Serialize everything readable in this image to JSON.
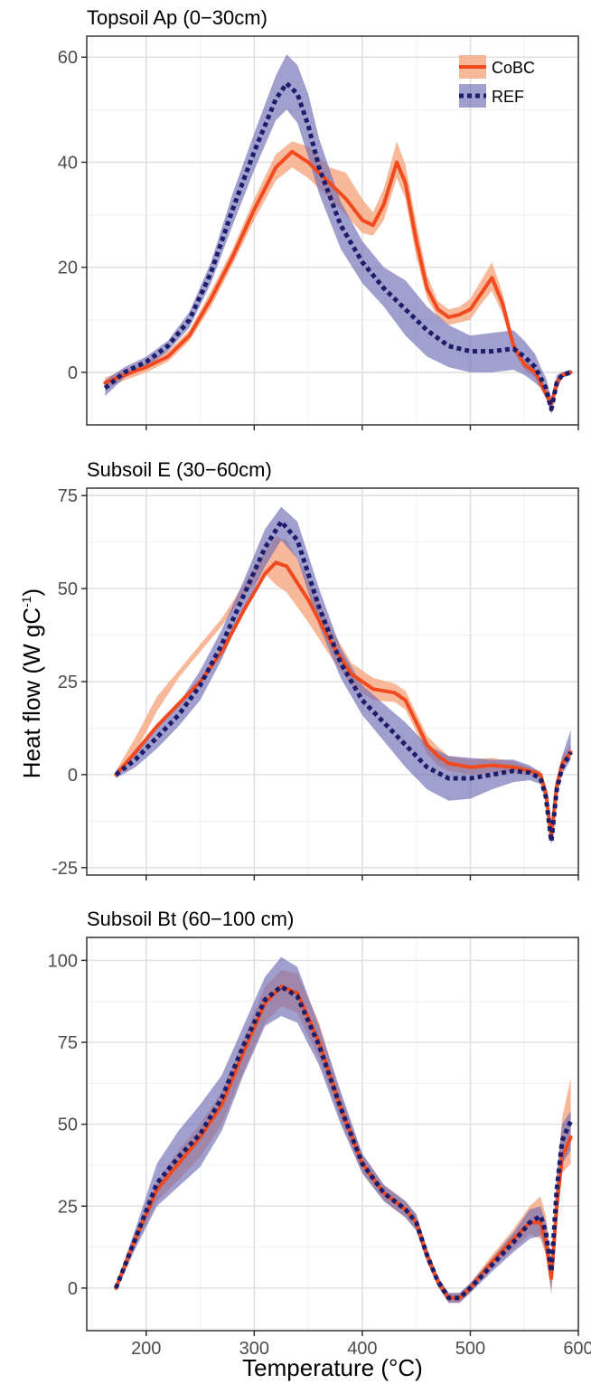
{
  "figure": {
    "xlabel": "Temperature (°C)",
    "ylabel": "Heat flow (W gC",
    "ylabel_sup": "-1",
    "ylabel_close": ")"
  },
  "legend": {
    "position": "top-right",
    "entries": [
      "CoBC",
      "REF"
    ]
  },
  "colors": {
    "CoBC_line": "#f24a1f",
    "CoBC_band": "#f6a882",
    "REF_line": "#1d1d6b",
    "REF_band": "#6e6bb4"
  },
  "chart_data": [
    {
      "type": "line",
      "title": "Topsoil Ap (0−30cm)",
      "xlim": [
        145,
        600
      ],
      "ylim": [
        -10,
        64
      ],
      "xticks": [
        200,
        300,
        400,
        500,
        600
      ],
      "yticks": [
        0,
        20,
        40,
        60
      ],
      "grid": true,
      "legend": true,
      "series": [
        {
          "name": "CoBC",
          "x": [
            162,
            180,
            200,
            220,
            240,
            260,
            280,
            300,
            320,
            335,
            350,
            370,
            385,
            400,
            410,
            420,
            432,
            440,
            450,
            460,
            470,
            480,
            490,
            500,
            510,
            520,
            530,
            540,
            550,
            560,
            565,
            570,
            575,
            580,
            585,
            593
          ],
          "y": [
            -2,
            -0.5,
            1,
            3,
            7,
            14,
            22,
            31,
            39,
            42,
            40,
            36,
            33,
            29,
            28,
            32,
            40,
            36,
            25,
            16,
            12,
            10.5,
            11,
            12,
            15,
            18,
            13,
            5,
            1.5,
            0,
            -2,
            -4,
            -6,
            -2,
            -0.5,
            0
          ],
          "lower": [
            -3,
            -1.5,
            0,
            2,
            6,
            12.5,
            20.5,
            29,
            36.5,
            39,
            37,
            33,
            30,
            26.5,
            26,
            29,
            37,
            33,
            22,
            14,
            10.5,
            9,
            9.5,
            10,
            13,
            15.5,
            11,
            4,
            0.5,
            -1,
            -3,
            -5,
            -7,
            -3,
            -1,
            -0.5
          ],
          "upper": [
            -1,
            0.5,
            2,
            4,
            8,
            15.5,
            23.5,
            33,
            41.5,
            44,
            43,
            39,
            38,
            33,
            30.5,
            35,
            44,
            39.5,
            28.5,
            18.5,
            13.5,
            12,
            12.5,
            14,
            17.5,
            21,
            15,
            6,
            2.5,
            1,
            -1,
            -3,
            -5,
            -1,
            0,
            0.5
          ]
        },
        {
          "name": "REF",
          "x": [
            162,
            180,
            200,
            220,
            240,
            260,
            280,
            300,
            320,
            330,
            340,
            350,
            360,
            380,
            400,
            420,
            440,
            460,
            480,
            500,
            520,
            540,
            550,
            560,
            565,
            570,
            575,
            580,
            585,
            593
          ],
          "y": [
            -3,
            0,
            2,
            5,
            10,
            19,
            31,
            42,
            52,
            55,
            53,
            47,
            39,
            28,
            21,
            16,
            12,
            8,
            5,
            4,
            4,
            4.5,
            3,
            1,
            -1,
            -3,
            -7,
            -2,
            -0.5,
            0
          ],
          "lower": [
            -4.5,
            -1,
            1,
            4,
            8.5,
            17,
            28,
            38.5,
            48,
            50,
            47.5,
            41,
            34,
            23.5,
            17,
            12.5,
            7,
            3,
            1,
            0,
            0,
            0.5,
            -0.5,
            -2,
            -3,
            -5,
            -8,
            -3.5,
            -1,
            -0.5
          ],
          "upper": [
            -1.5,
            1,
            3,
            6,
            11.5,
            21,
            34,
            45.5,
            56.5,
            60.5,
            58.5,
            53,
            44.5,
            32.5,
            25,
            20,
            17.5,
            12.5,
            9,
            7,
            7.5,
            8,
            6,
            3.5,
            1,
            -1,
            -5,
            -0.5,
            0,
            0.5
          ]
        }
      ]
    },
    {
      "type": "line",
      "title": "Subsoil E (30−60cm)",
      "xlim": [
        145,
        600
      ],
      "ylim": [
        -27,
        77
      ],
      "xticks": [
        200,
        300,
        400,
        500,
        600
      ],
      "yticks": [
        -25,
        0,
        25,
        50,
        75
      ],
      "grid": true,
      "legend": false,
      "series": [
        {
          "name": "CoBC",
          "x": [
            172,
            190,
            210,
            230,
            250,
            270,
            290,
            310,
            320,
            330,
            350,
            370,
            390,
            410,
            430,
            440,
            450,
            460,
            470,
            480,
            500,
            520,
            540,
            555,
            565,
            570,
            575,
            580,
            585,
            593
          ],
          "y": [
            0,
            6,
            13,
            19,
            25,
            33,
            44,
            54,
            57,
            56,
            47,
            36,
            27,
            23,
            22,
            20,
            14,
            8,
            5,
            3,
            2,
            2.5,
            2,
            1,
            0,
            -5,
            -17,
            -3,
            3,
            6
          ],
          "lower": [
            -1,
            6,
            17,
            26,
            33,
            40,
            48,
            54,
            51,
            49,
            41,
            32,
            24,
            20,
            19.5,
            17.5,
            11.5,
            5.5,
            2.5,
            1,
            0,
            0.5,
            0.5,
            0,
            -1,
            -6,
            -18,
            -4,
            2,
            4
          ],
          "upper": [
            1,
            10,
            21,
            28,
            35,
            42,
            51,
            60,
            64,
            63,
            53,
            40,
            30,
            26,
            24.5,
            22.5,
            16.5,
            10.5,
            7.5,
            5,
            4,
            4.5,
            3.5,
            2,
            1,
            -4,
            -16,
            -2,
            5,
            8
          ]
        },
        {
          "name": "REF",
          "x": [
            172,
            190,
            210,
            230,
            250,
            270,
            290,
            310,
            325,
            340,
            360,
            380,
            400,
            420,
            440,
            460,
            480,
            500,
            520,
            540,
            555,
            565,
            570,
            575,
            580,
            585,
            593
          ],
          "y": [
            0,
            4,
            10,
            16,
            24,
            35,
            48,
            61,
            68,
            63,
            45,
            30,
            20,
            14,
            8,
            2,
            -1,
            -1,
            0,
            1,
            0.5,
            -1,
            -6,
            -18,
            -4,
            2,
            6
          ],
          "lower": [
            -1,
            2,
            7,
            13,
            20,
            31,
            44,
            56,
            63,
            58,
            40,
            26,
            16,
            9,
            2,
            -4,
            -7,
            -6.5,
            -4,
            -2,
            -1.5,
            -2.5,
            -7.5,
            -19,
            -6,
            0,
            4
          ],
          "upper": [
            1,
            6,
            13,
            19,
            28,
            39,
            52,
            66,
            72,
            68,
            50,
            34,
            24,
            19,
            14,
            8,
            5,
            4.5,
            4,
            4,
            2.5,
            0.5,
            -4.5,
            -17,
            -2,
            5,
            12
          ]
        }
      ]
    },
    {
      "type": "line",
      "title": "Subsoil Bt (60−100 cm)",
      "xlim": [
        145,
        600
      ],
      "ylim": [
        -13,
        107
      ],
      "xticks": [
        200,
        300,
        400,
        500,
        600
      ],
      "yticks": [
        0,
        25,
        50,
        75,
        100
      ],
      "grid": true,
      "legend": false,
      "series": [
        {
          "name": "CoBC",
          "x": [
            172,
            190,
            210,
            230,
            250,
            270,
            290,
            310,
            325,
            340,
            360,
            380,
            400,
            420,
            440,
            450,
            460,
            470,
            480,
            490,
            500,
            520,
            540,
            555,
            565,
            570,
            575,
            580,
            585,
            593
          ],
          "y": [
            0,
            15,
            30,
            38,
            46,
            56,
            72,
            87,
            92,
            90,
            75,
            55,
            38,
            29,
            24,
            20,
            10,
            2,
            -3,
            -3,
            0,
            8,
            15,
            20,
            20,
            14,
            3,
            25,
            40,
            46
          ],
          "lower": [
            -1,
            13,
            26.5,
            33,
            40,
            50,
            66,
            81,
            86,
            84,
            70,
            51,
            35,
            26.5,
            21.5,
            17.5,
            8,
            0.5,
            -4.5,
            -4.5,
            -1.5,
            6,
            12,
            16.5,
            15,
            10,
            -2,
            20,
            35,
            38
          ],
          "upper": [
            1,
            17,
            32.5,
            42,
            50,
            60,
            76,
            92,
            97,
            96,
            81,
            59,
            41,
            31.5,
            26.5,
            22.5,
            12,
            3.5,
            -1.5,
            -1.5,
            1.5,
            10,
            18,
            25,
            28,
            22,
            8,
            34,
            52,
            64
          ]
        },
        {
          "name": "REF",
          "x": [
            172,
            190,
            210,
            230,
            250,
            270,
            290,
            310,
            325,
            340,
            360,
            380,
            400,
            420,
            440,
            450,
            460,
            470,
            480,
            490,
            500,
            520,
            540,
            555,
            565,
            570,
            575,
            580,
            585,
            593
          ],
          "y": [
            0,
            15,
            32,
            40,
            47,
            58,
            74,
            88,
            92,
            89,
            74,
            55,
            38,
            29,
            24,
            20,
            10,
            2,
            -3,
            -3,
            0,
            7,
            14,
            20,
            22,
            17,
            5,
            30,
            45,
            51
          ],
          "lower": [
            -1,
            12,
            25,
            31,
            37,
            48,
            65,
            80,
            83,
            81,
            68,
            50,
            35,
            26.5,
            21.5,
            17.5,
            8,
            0.5,
            -4.5,
            -4.5,
            -1.5,
            5,
            11,
            15,
            16,
            11,
            -1,
            24,
            38,
            42
          ],
          "upper": [
            1,
            18,
            38,
            48,
            56,
            65,
            80,
            95,
            101,
            98,
            80,
            60,
            41,
            31.5,
            26.5,
            22.5,
            12,
            3.5,
            -1.5,
            -1.5,
            1.5,
            9,
            17,
            24,
            25,
            20,
            8,
            35,
            50,
            54
          ]
        }
      ]
    }
  ]
}
